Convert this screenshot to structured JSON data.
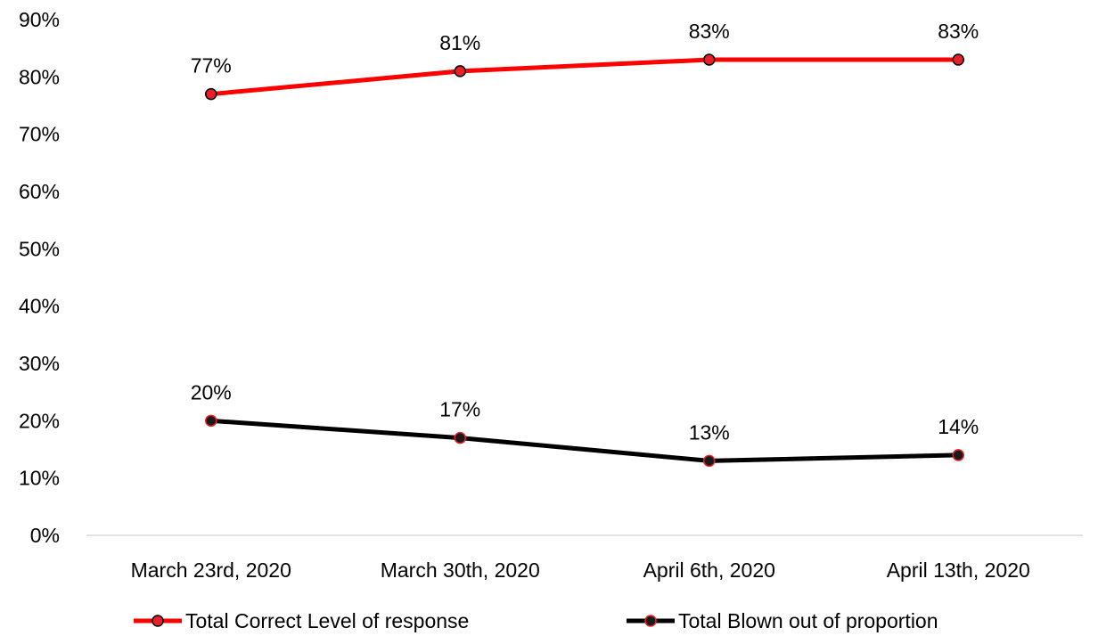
{
  "chart_data": {
    "type": "line",
    "categories": [
      "March 23rd, 2020",
      "March 30th, 2020",
      "April 6th, 2020",
      "April 13th, 2020"
    ],
    "ylim": [
      0,
      90
    ],
    "yticks": [
      0,
      10,
      20,
      30,
      40,
      50,
      60,
      70,
      80,
      90
    ],
    "ytick_labels": [
      "0%",
      "10%",
      "20%",
      "30%",
      "40%",
      "50%",
      "60%",
      "70%",
      "80%",
      "90%"
    ],
    "grid": false,
    "legend_position": "bottom",
    "series": [
      {
        "name": "Total Correct Level of response",
        "values": [
          77,
          81,
          83,
          83
        ],
        "labels": [
          "77%",
          "81%",
          "83%",
          "83%"
        ],
        "line_color": "#ff0000",
        "marker_fill": "#e8202a",
        "marker_edge": "#000000"
      },
      {
        "name": "Total Blown out of proportion",
        "values": [
          20,
          17,
          13,
          14
        ],
        "labels": [
          "20%",
          "17%",
          "13%",
          "14%"
        ],
        "line_color": "#000000",
        "marker_fill": "#1a1a1a",
        "marker_edge": "#e8202a"
      }
    ]
  }
}
